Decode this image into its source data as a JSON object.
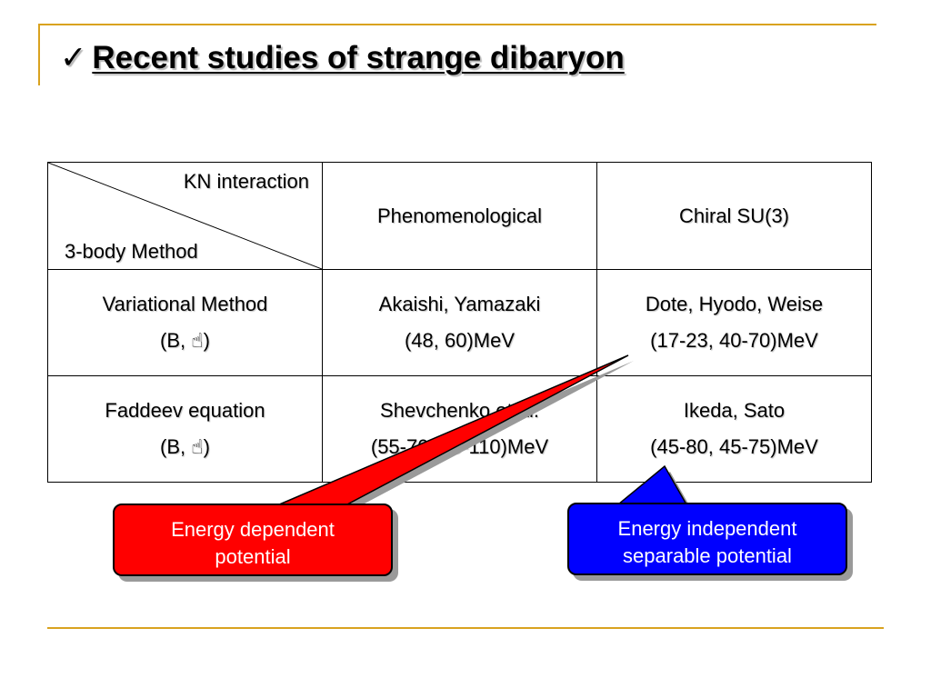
{
  "slide": {
    "check_glyph": "✓",
    "title": "Recent studies of strange dibaryon"
  },
  "table": {
    "corner_top": "KN interaction",
    "corner_bottom": "3-body Method",
    "headers": [
      "Phenomenological",
      "Chiral SU(3)"
    ],
    "rows": [
      {
        "method": "Variational Method",
        "method_sub": "(B, ☝)",
        "cells": [
          {
            "line1": "Akaishi, Yamazaki",
            "line2": "(48, 60)MeV"
          },
          {
            "line1": "Dote, Hyodo, Weise",
            "line2": "(17-23, 40-70)MeV"
          }
        ]
      },
      {
        "method": "Faddeev equation",
        "method_sub": "(B, ☝)",
        "cells": [
          {
            "line1": "Shevchenko et al.",
            "line2": "(55-70, 90-110)MeV"
          },
          {
            "line1": "Ikeda, Sato",
            "line2": "(45-80, 45-75)MeV"
          }
        ]
      }
    ]
  },
  "callouts": {
    "red": {
      "line1": "Energy dependent",
      "line2": "potential",
      "color": "#ff0000"
    },
    "blue": {
      "line1": "Energy independent",
      "line2": "separable potential",
      "color": "#0000ff"
    }
  },
  "colors": {
    "frame": "#d9a21f"
  }
}
